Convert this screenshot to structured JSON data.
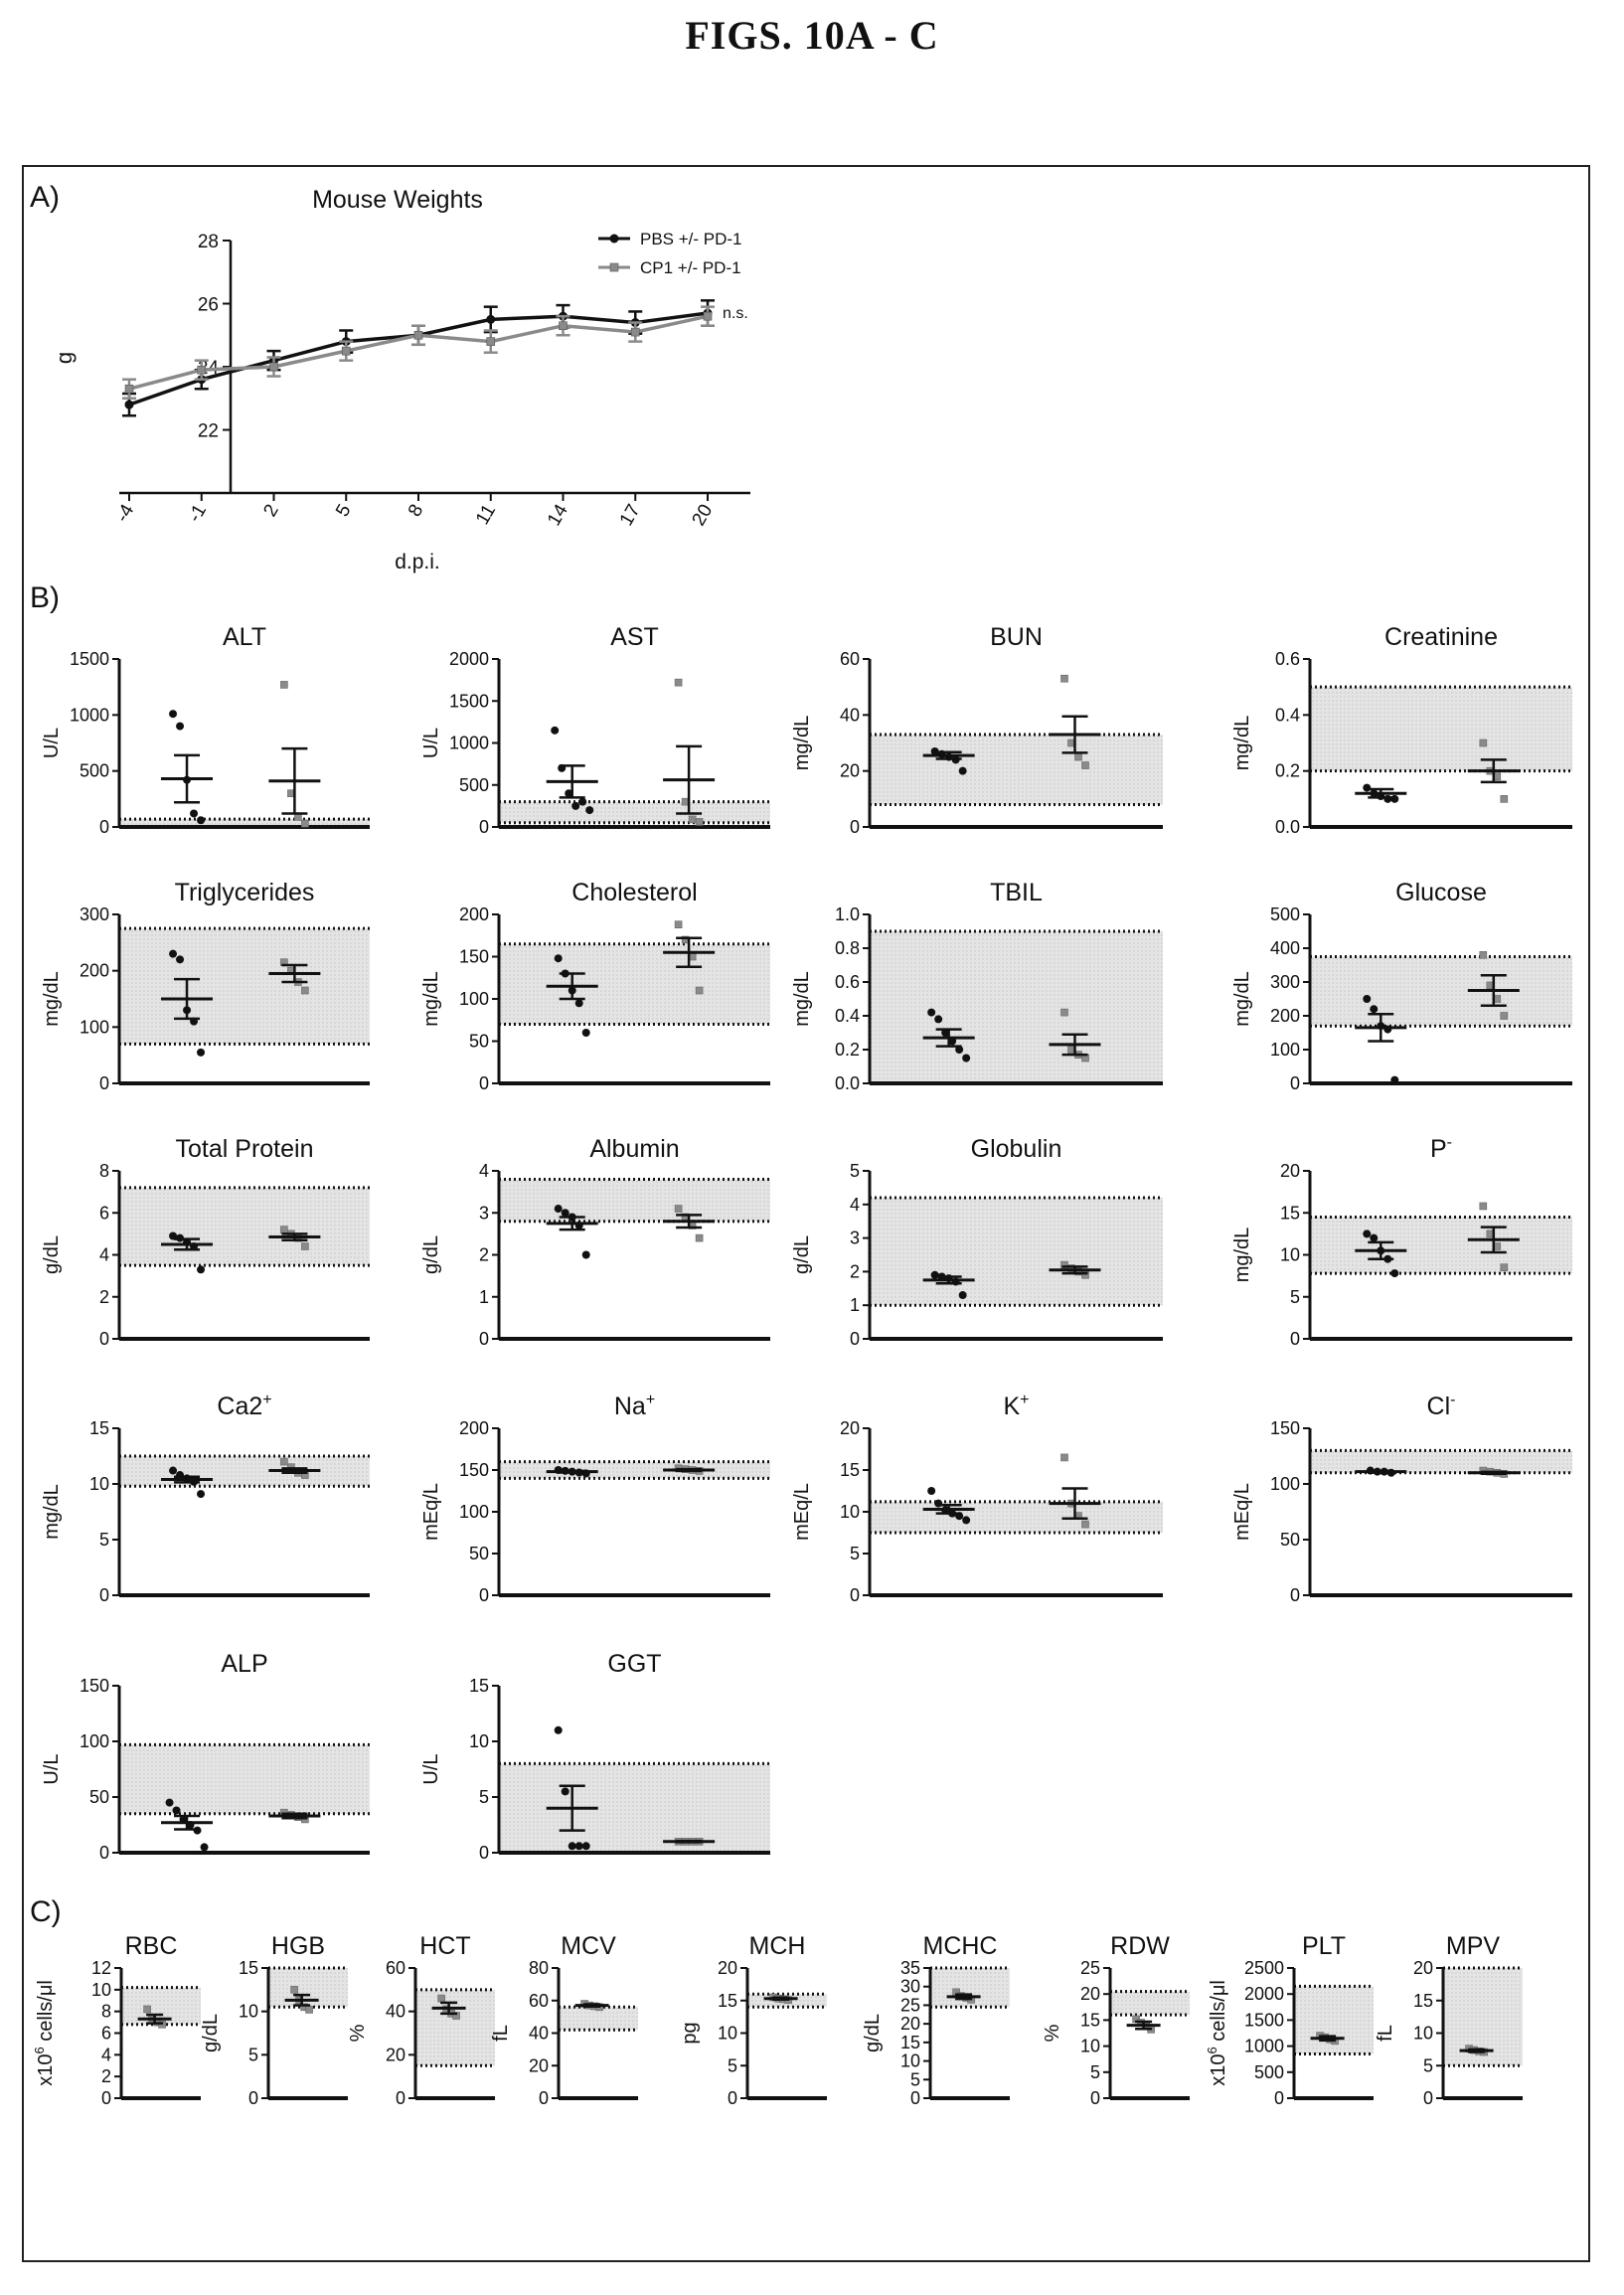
{
  "figure": {
    "heading": "FIGS. 10A - C"
  },
  "colors": {
    "pbs": "#111111",
    "cp1": "#8a8a8a",
    "normal_band": "#e4e4e4",
    "axis": "#111111"
  },
  "chart_data": [
    {
      "panel": "A)",
      "type": "line",
      "title": "Mouse Weights",
      "xlabel": "d.p.i.",
      "ylabel": "g",
      "x": [
        -4,
        -1,
        2,
        5,
        8,
        11,
        14,
        17,
        20
      ],
      "ylim": [
        20,
        28
      ],
      "yticks": [
        22,
        24,
        26,
        28
      ],
      "annotation": "n.s.",
      "series": [
        {
          "name": "PBS +/- PD-1",
          "color": "#111111",
          "marker": "circle",
          "values": [
            22.8,
            23.6,
            24.2,
            24.8,
            25.0,
            25.5,
            25.6,
            25.4,
            25.7
          ],
          "sem": [
            0.35,
            0.3,
            0.3,
            0.35,
            0.3,
            0.4,
            0.35,
            0.35,
            0.4
          ]
        },
        {
          "name": "CP1 +/- PD-1",
          "color": "#8a8a8a",
          "marker": "square",
          "values": [
            23.3,
            23.9,
            24.0,
            24.5,
            25.0,
            24.8,
            25.3,
            25.1,
            25.6
          ],
          "sem": [
            0.3,
            0.3,
            0.3,
            0.3,
            0.3,
            0.35,
            0.3,
            0.3,
            0.3
          ]
        }
      ]
    },
    {
      "panel": "B)",
      "type": "scatter",
      "title": "ALT",
      "titleSup": "",
      "ylabel": "U/L",
      "ylim": [
        0,
        1500
      ],
      "yticks": [
        0,
        500,
        1000,
        1500
      ],
      "band": [
        0,
        70
      ],
      "series": [
        {
          "mean": 430,
          "sem": 210,
          "points": [
            1010,
            900,
            420,
            120,
            60
          ]
        },
        {
          "mean": 410,
          "sem": 290,
          "points": [
            1270,
            300,
            90,
            30
          ]
        }
      ]
    },
    {
      "type": "scatter",
      "title": "AST",
      "titleSup": "",
      "ylabel": "U/L",
      "ylim": [
        0,
        2000
      ],
      "yticks": [
        0,
        500,
        1000,
        1500,
        2000
      ],
      "band": [
        50,
        300
      ],
      "series": [
        {
          "mean": 540,
          "sem": 190,
          "points": [
            1150,
            700,
            400,
            250,
            300,
            200
          ]
        },
        {
          "mean": 560,
          "sem": 400,
          "points": [
            1720,
            300,
            90,
            60
          ]
        }
      ]
    },
    {
      "type": "scatter",
      "title": "BUN",
      "titleSup": "",
      "ylabel": "mg/dL",
      "ylim": [
        0,
        60
      ],
      "yticks": [
        0,
        20,
        40,
        60
      ],
      "band": [
        8,
        33
      ],
      "series": [
        {
          "mean": 25.5,
          "sem": 1.2,
          "points": [
            27,
            26,
            25,
            24,
            20
          ]
        },
        {
          "mean": 33,
          "sem": 6.5,
          "points": [
            53,
            30,
            25,
            22
          ]
        }
      ]
    },
    {
      "type": "scatter",
      "title": "Creatinine",
      "titleSup": "",
      "ylabel": "mg/dL",
      "ylim": [
        0,
        0.6
      ],
      "yticks": [
        0,
        0.2,
        0.4,
        0.6
      ],
      "tickDecimals": 1,
      "band": [
        0.2,
        0.5
      ],
      "series": [
        {
          "mean": 0.12,
          "sem": 0.015,
          "points": [
            0.14,
            0.12,
            0.11,
            0.1,
            0.1
          ]
        },
        {
          "mean": 0.2,
          "sem": 0.04,
          "points": [
            0.3,
            0.2,
            0.18,
            0.1
          ]
        }
      ]
    },
    {
      "type": "scatter",
      "title": "Triglycerides",
      "titleSup": "",
      "ylabel": "mg/dL",
      "ylim": [
        0,
        300
      ],
      "yticks": [
        0,
        100,
        200,
        300
      ],
      "band": [
        70,
        275
      ],
      "series": [
        {
          "mean": 150,
          "sem": 35,
          "points": [
            230,
            220,
            130,
            110,
            55
          ]
        },
        {
          "mean": 195,
          "sem": 15,
          "points": [
            215,
            200,
            180,
            165
          ]
        }
      ]
    },
    {
      "type": "scatter",
      "title": "Cholesterol",
      "titleSup": "",
      "ylabel": "mg/dL",
      "ylim": [
        0,
        200
      ],
      "yticks": [
        0,
        50,
        100,
        150,
        200
      ],
      "band": [
        70,
        165
      ],
      "series": [
        {
          "mean": 115,
          "sem": 15,
          "points": [
            148,
            130,
            110,
            95,
            60
          ]
        },
        {
          "mean": 155,
          "sem": 17,
          "points": [
            188,
            170,
            150,
            110
          ]
        }
      ]
    },
    {
      "type": "scatter",
      "title": "TBIL",
      "titleSup": "",
      "ylabel": "mg/dL",
      "ylim": [
        0,
        1.0
      ],
      "yticks": [
        0,
        0.2,
        0.4,
        0.6,
        0.8,
        1.0
      ],
      "tickDecimals": 1,
      "band": [
        0,
        0.9
      ],
      "series": [
        {
          "mean": 0.27,
          "sem": 0.05,
          "points": [
            0.42,
            0.38,
            0.3,
            0.25,
            0.2,
            0.15
          ]
        },
        {
          "mean": 0.23,
          "sem": 0.06,
          "points": [
            0.42,
            0.2,
            0.17,
            0.15
          ]
        }
      ]
    },
    {
      "type": "scatter",
      "title": "Glucose",
      "titleSup": "",
      "ylabel": "mg/dL",
      "ylim": [
        0,
        500
      ],
      "yticks": [
        0,
        100,
        200,
        300,
        400,
        500
      ],
      "band": [
        170,
        375
      ],
      "series": [
        {
          "mean": 165,
          "sem": 40,
          "points": [
            250,
            220,
            170,
            160,
            10
          ]
        },
        {
          "mean": 275,
          "sem": 45,
          "points": [
            380,
            290,
            250,
            200
          ]
        }
      ]
    },
    {
      "type": "scatter",
      "title": "Total Protein",
      "titleSup": "",
      "ylabel": "g/dL",
      "ylim": [
        0,
        8
      ],
      "yticks": [
        0,
        2,
        4,
        6,
        8
      ],
      "band": [
        3.5,
        7.2
      ],
      "series": [
        {
          "mean": 4.5,
          "sem": 0.25,
          "points": [
            4.9,
            4.8,
            4.6,
            4.4,
            3.3
          ]
        },
        {
          "mean": 4.85,
          "sem": 0.15,
          "points": [
            5.2,
            5.0,
            4.8,
            4.4
          ]
        }
      ]
    },
    {
      "type": "scatter",
      "title": "Albumin",
      "titleSup": "",
      "ylabel": "g/dL",
      "ylim": [
        0,
        4
      ],
      "yticks": [
        0,
        1,
        2,
        3,
        4
      ],
      "band": [
        2.8,
        3.8
      ],
      "series": [
        {
          "mean": 2.75,
          "sem": 0.15,
          "points": [
            3.1,
            3.0,
            2.9,
            2.7,
            2.0
          ]
        },
        {
          "mean": 2.8,
          "sem": 0.15,
          "points": [
            3.1,
            2.9,
            2.7,
            2.4
          ]
        }
      ]
    },
    {
      "type": "scatter",
      "title": "Globulin",
      "titleSup": "",
      "ylabel": "g/dL",
      "ylim": [
        0,
        5
      ],
      "yticks": [
        0,
        1,
        2,
        3,
        4,
        5
      ],
      "band": [
        1.0,
        4.2
      ],
      "series": [
        {
          "mean": 1.75,
          "sem": 0.1,
          "points": [
            1.9,
            1.85,
            1.8,
            1.7,
            1.3
          ]
        },
        {
          "mean": 2.05,
          "sem": 0.1,
          "points": [
            2.2,
            2.1,
            2.0,
            1.9
          ]
        }
      ]
    },
    {
      "type": "scatter",
      "title": "P",
      "titleSup": "-",
      "ylabel": "mg/dL",
      "ylim": [
        0,
        20
      ],
      "yticks": [
        0,
        5,
        10,
        15,
        20
      ],
      "band": [
        7.8,
        14.5
      ],
      "series": [
        {
          "mean": 10.5,
          "sem": 1.0,
          "points": [
            12.5,
            12.0,
            10.5,
            9.5,
            7.8
          ]
        },
        {
          "mean": 11.8,
          "sem": 1.5,
          "points": [
            15.8,
            12.5,
            11.0,
            8.5
          ]
        }
      ]
    },
    {
      "type": "scatter",
      "title": "Ca2",
      "titleSup": "+",
      "ylabel": "mg/dL",
      "ylim": [
        0,
        15
      ],
      "yticks": [
        0,
        5,
        10,
        15
      ],
      "band": [
        9.8,
        12.5
      ],
      "series": [
        {
          "mean": 10.4,
          "sem": 0.25,
          "points": [
            11.2,
            10.8,
            10.5,
            10.2,
            9.1
          ]
        },
        {
          "mean": 11.2,
          "sem": 0.2,
          "points": [
            12.0,
            11.5,
            11.0,
            10.8
          ]
        }
      ]
    },
    {
      "type": "scatter",
      "title": "Na",
      "titleSup": "+",
      "ylabel": "mEq/L",
      "ylim": [
        0,
        200
      ],
      "yticks": [
        0,
        50,
        100,
        150,
        200
      ],
      "band": [
        140,
        160
      ],
      "series": [
        {
          "mean": 148,
          "sem": 1.0,
          "points": [
            150,
            149,
            148,
            147,
            146
          ]
        },
        {
          "mean": 150,
          "sem": 1.0,
          "points": [
            152,
            151,
            150,
            149
          ]
        }
      ]
    },
    {
      "type": "scatter",
      "title": "K",
      "titleSup": "+",
      "ylabel": "mEq/L",
      "ylim": [
        0,
        20
      ],
      "yticks": [
        0,
        5,
        10,
        15,
        20
      ],
      "band": [
        7.5,
        11.2
      ],
      "series": [
        {
          "mean": 10.3,
          "sem": 0.5,
          "points": [
            12.5,
            11.0,
            10.2,
            9.8,
            9.5,
            9.0
          ]
        },
        {
          "mean": 11.0,
          "sem": 1.8,
          "points": [
            16.5,
            11.0,
            9.5,
            8.5
          ]
        }
      ]
    },
    {
      "type": "scatter",
      "title": "Cl",
      "titleSup": "-",
      "ylabel": "mEq/L",
      "ylim": [
        0,
        150
      ],
      "yticks": [
        0,
        50,
        100,
        150
      ],
      "band": [
        110,
        130
      ],
      "series": [
        {
          "mean": 111,
          "sem": 0.8,
          "points": [
            112,
            111,
            111,
            110
          ]
        },
        {
          "mean": 110,
          "sem": 0.8,
          "points": [
            112,
            111,
            110,
            109
          ]
        }
      ]
    },
    {
      "type": "scatter",
      "title": "ALP",
      "titleSup": "",
      "ylabel": "U/L",
      "ylim": [
        0,
        150
      ],
      "yticks": [
        0,
        50,
        100,
        150
      ],
      "band": [
        35,
        97
      ],
      "series": [
        {
          "mean": 27,
          "sem": 6,
          "points": [
            45,
            38,
            30,
            25,
            20,
            5
          ]
        },
        {
          "mean": 33,
          "sem": 2,
          "points": [
            36,
            34,
            32,
            30
          ]
        }
      ]
    },
    {
      "type": "scatter",
      "title": "GGT",
      "titleSup": "",
      "ylabel": "U/L",
      "ylim": [
        0,
        15
      ],
      "yticks": [
        0,
        5,
        10,
        15
      ],
      "band": [
        0,
        8
      ],
      "series": [
        {
          "mean": 4.0,
          "sem": 2.0,
          "points": [
            11.0,
            5.5,
            0.6,
            0.6,
            0.6
          ]
        },
        {
          "mean": 1.0,
          "sem": 0.05,
          "points": [
            1.0,
            1.0,
            1.0,
            1.0
          ]
        }
      ]
    },
    {
      "panel": "C)",
      "type": "scatter",
      "title": "RBC",
      "ylabel": "x10^6 cells/μl",
      "ylabelSup": "6",
      "ylabelPre": "x10",
      "ylabelPost": " cells/μl",
      "ylim": [
        0,
        12
      ],
      "yticks": [
        0,
        2,
        4,
        6,
        8,
        10,
        12
      ],
      "band": [
        6.8,
        10.2
      ],
      "mean": 7.3,
      "sem": 0.4,
      "points": [
        8.2,
        7.4,
        7.0,
        6.8
      ]
    },
    {
      "type": "scatter",
      "title": "HGB",
      "ylabel": "g/dL",
      "ylim": [
        0,
        15
      ],
      "yticks": [
        0,
        5,
        10,
        15
      ],
      "band": [
        10.5,
        15
      ],
      "mean": 11.3,
      "sem": 0.6,
      "points": [
        12.5,
        11.3,
        10.5,
        10.2
      ]
    },
    {
      "type": "scatter",
      "title": "HCT",
      "ylabel": "%",
      "ylim": [
        0,
        60
      ],
      "yticks": [
        0,
        20,
        40,
        60
      ],
      "band": [
        15,
        50
      ],
      "mean": 41.5,
      "sem": 2.5,
      "points": [
        46,
        41,
        39,
        38
      ]
    },
    {
      "type": "scatter",
      "title": "MCV",
      "ylabel": "fL",
      "ylim": [
        0,
        80
      ],
      "yticks": [
        0,
        20,
        40,
        60,
        80
      ],
      "band": [
        42,
        56
      ],
      "mean": 57,
      "sem": 0.7,
      "points": [
        58,
        57,
        56.5,
        56
      ]
    },
    {
      "type": "scatter",
      "title": "MCH",
      "ylabel": "pg",
      "ylim": [
        0,
        20
      ],
      "yticks": [
        0,
        5,
        10,
        15,
        20
      ],
      "band": [
        14,
        16
      ],
      "mean": 15.3,
      "sem": 0.15,
      "points": [
        15.5,
        15.3,
        15.2,
        15.1
      ]
    },
    {
      "type": "scatter",
      "title": "MCHC",
      "ylabel": "g/dL",
      "ylim": [
        0,
        35
      ],
      "yticks": [
        0,
        5,
        10,
        15,
        20,
        25,
        30,
        35
      ],
      "band": [
        24.5,
        35
      ],
      "mean": 27.3,
      "sem": 0.6,
      "points": [
        28.5,
        27.5,
        27,
        26.5
      ]
    },
    {
      "type": "scatter",
      "title": "RDW",
      "ylabel": "%",
      "ylim": [
        0,
        25
      ],
      "yticks": [
        0,
        5,
        10,
        15,
        20,
        25
      ],
      "band": [
        16,
        20.5
      ],
      "mean": 14,
      "sem": 0.7,
      "points": [
        15.2,
        14.5,
        13.8,
        13.2
      ]
    },
    {
      "type": "scatter",
      "title": "PLT",
      "ylabel": "x10^6 cells/μl",
      "ylabelSup": "6",
      "ylabelPre": "x10",
      "ylabelPost": " cells/μl",
      "ylim": [
        0,
        2500
      ],
      "yticks": [
        0,
        500,
        1000,
        1500,
        2000,
        2500
      ],
      "band": [
        850,
        2150
      ],
      "mean": 1150,
      "sem": 40,
      "points": [
        1200,
        1170,
        1130,
        1100
      ]
    },
    {
      "type": "scatter",
      "title": "MPV",
      "ylabel": "fL",
      "ylim": [
        0,
        20
      ],
      "yticks": [
        0,
        5,
        10,
        15,
        20
      ],
      "band": [
        5,
        20
      ],
      "mean": 7.3,
      "sem": 0.2,
      "points": [
        7.6,
        7.4,
        7.2,
        7.1
      ]
    }
  ]
}
